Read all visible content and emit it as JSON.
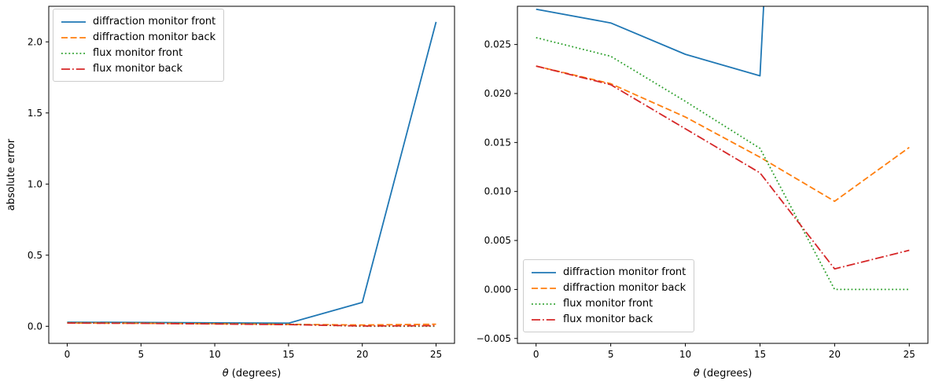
{
  "figure": {
    "background": "#ffffff"
  },
  "chart_data": [
    {
      "type": "line",
      "title": "",
      "xlabel": "θ (degrees)",
      "ylabel": "absolute error",
      "x": [
        0,
        5,
        10,
        15,
        20,
        25
      ],
      "series": [
        {
          "name": "diffraction monitor front",
          "color": "#1f77b4",
          "linestyle": "solid",
          "values": [
            0.0286,
            0.0272,
            0.024,
            0.0218,
            0.168,
            2.14
          ]
        },
        {
          "name": "diffraction monitor back",
          "color": "#ff7f0e",
          "linestyle": "dashed",
          "values": [
            0.0228,
            0.021,
            0.0176,
            0.0135,
            0.009,
            0.0145
          ]
        },
        {
          "name": "flux monitor front",
          "color": "#2ca02c",
          "linestyle": "dotted",
          "values": [
            0.0257,
            0.0238,
            0.0192,
            0.0144,
            0.0,
            0.0
          ]
        },
        {
          "name": "flux monitor back",
          "color": "#d62728",
          "linestyle": "dashdot",
          "values": [
            0.0228,
            0.0209,
            0.0164,
            0.0119,
            0.0021,
            0.004
          ]
        }
      ],
      "xlim": [
        -1.25,
        26.25
      ],
      "ylim": [
        -0.12,
        2.25
      ],
      "xticks": [
        0,
        5,
        10,
        15,
        20,
        25
      ],
      "xtick_labels": [
        "0",
        "5",
        "10",
        "15",
        "20",
        "25"
      ],
      "yticks": [
        0.0,
        0.5,
        1.0,
        1.5,
        2.0
      ],
      "ytick_labels": [
        "0.0",
        "0.5",
        "1.0",
        "1.5",
        "2.0"
      ],
      "grid": false,
      "legend": {
        "position": "upper-left",
        "entries": [
          "diffraction monitor front",
          "diffraction monitor back",
          "flux monitor front",
          "flux monitor back"
        ]
      }
    },
    {
      "type": "line",
      "title": "",
      "xlabel": "θ (degrees)",
      "ylabel": "",
      "x": [
        0,
        5,
        10,
        15,
        20,
        25
      ],
      "series": [
        {
          "name": "diffraction monitor front",
          "color": "#1f77b4",
          "linestyle": "solid",
          "values": [
            0.0286,
            0.0272,
            0.024,
            0.0218,
            0.168,
            2.14
          ]
        },
        {
          "name": "diffraction monitor back",
          "color": "#ff7f0e",
          "linestyle": "dashed",
          "values": [
            0.0228,
            0.021,
            0.0176,
            0.0135,
            0.009,
            0.0145
          ]
        },
        {
          "name": "flux monitor front",
          "color": "#2ca02c",
          "linestyle": "dotted",
          "values": [
            0.0257,
            0.0238,
            0.0192,
            0.0144,
            0.0,
            0.0
          ]
        },
        {
          "name": "flux monitor back",
          "color": "#d62728",
          "linestyle": "dashdot",
          "values": [
            0.0228,
            0.0209,
            0.0164,
            0.0119,
            0.0021,
            0.004
          ]
        }
      ],
      "xlim": [
        -1.25,
        26.25
      ],
      "ylim": [
        -0.0055,
        0.0289
      ],
      "xticks": [
        0,
        5,
        10,
        15,
        20,
        25
      ],
      "xtick_labels": [
        "0",
        "5",
        "10",
        "15",
        "20",
        "25"
      ],
      "yticks": [
        -0.005,
        0.0,
        0.005,
        0.01,
        0.015,
        0.02,
        0.025
      ],
      "ytick_labels": [
        "−0.005",
        "0.000",
        "0.005",
        "0.010",
        "0.015",
        "0.020",
        "0.025"
      ],
      "grid": false,
      "legend": {
        "position": "lower-left",
        "entries": [
          "diffraction monitor front",
          "diffraction monitor back",
          "flux monitor front",
          "flux monitor back"
        ]
      }
    }
  ]
}
